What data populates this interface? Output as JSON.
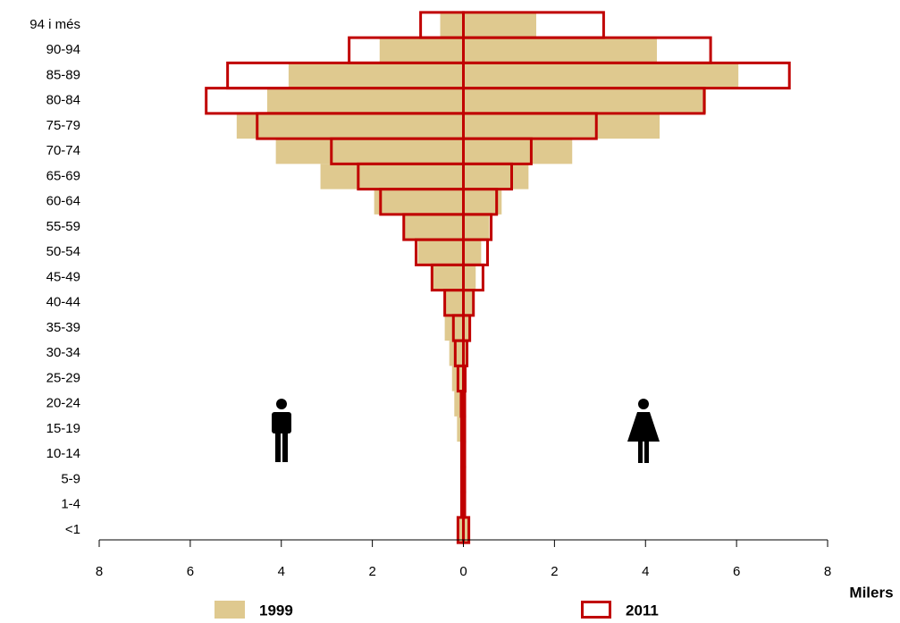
{
  "chart_data": {
    "type": "pyramid",
    "categories": [
      "94 i més",
      "90-94",
      "85-89",
      "80-84",
      "75-79",
      "70-74",
      "65-69",
      "60-64",
      "55-59",
      "50-54",
      "45-49",
      "40-44",
      "35-39",
      "30-34",
      "25-29",
      "20-24",
      "15-19",
      "10-14",
      "5-9",
      "1-4",
      "<1"
    ],
    "series": [
      {
        "name": "1999",
        "color": "#dfc98f",
        "style": "fill",
        "men": [
          -0.51,
          -1.84,
          -3.84,
          -4.31,
          -4.98,
          -4.12,
          -3.14,
          -1.96,
          -1.29,
          -1.0,
          -0.67,
          -0.43,
          -0.41,
          -0.31,
          -0.25,
          -0.2,
          -0.14,
          -0.05,
          -0.03,
          -0.03,
          -0.1
        ],
        "women": [
          1.6,
          4.25,
          6.04,
          5.33,
          4.31,
          2.39,
          1.43,
          0.84,
          0.57,
          0.39,
          0.27,
          0.2,
          0.12,
          0.08,
          0.06,
          0.04,
          0.04,
          0.03,
          0.03,
          0.03,
          0.1
        ]
      },
      {
        "name": "2011",
        "color": "#c00000",
        "style": "outline",
        "men": [
          -0.94,
          -2.51,
          -5.18,
          -5.65,
          -4.53,
          -2.9,
          -2.31,
          -1.82,
          -1.31,
          -1.04,
          -0.69,
          -0.41,
          -0.22,
          -0.18,
          -0.12,
          -0.05,
          -0.04,
          -0.04,
          -0.04,
          -0.04,
          -0.12
        ],
        "women": [
          3.08,
          5.43,
          7.16,
          5.29,
          2.92,
          1.49,
          1.06,
          0.73,
          0.61,
          0.53,
          0.43,
          0.22,
          0.14,
          0.08,
          0.04,
          0.03,
          0.03,
          0.03,
          0.03,
          0.03,
          0.12
        ]
      }
    ],
    "xlabel": "Milers",
    "xlim": [
      -8,
      8
    ],
    "xticks": [
      {
        "value": -8,
        "label": "8"
      },
      {
        "value": -6,
        "label": "6"
      },
      {
        "value": -4,
        "label": "4"
      },
      {
        "value": -2,
        "label": "2"
      },
      0,
      2,
      4,
      6,
      8
    ]
  }
}
